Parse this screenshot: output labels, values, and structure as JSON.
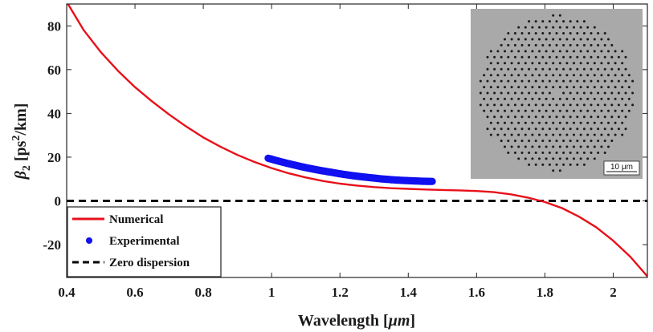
{
  "chart_data": {
    "type": "line",
    "xlabel": "Wavelength [",
    "xlabel_unit": "μm",
    "xlabel_close": "]",
    "ylabel_symbol": "β",
    "ylabel_sub": "2",
    "ylabel_unit_a": " [ps",
    "ylabel_unit_sup": "2",
    "ylabel_unit_b": "/km]",
    "xlim": [
      0.4,
      2.1
    ],
    "ylim": [
      -35,
      90
    ],
    "x_ticks": [
      0.4,
      0.6,
      0.8,
      1,
      1.2,
      1.4,
      1.6,
      1.8,
      2
    ],
    "x_tick_labels": [
      "0.4",
      "0.6",
      "0.8",
      "1",
      "1.2",
      "1.4",
      "1.6",
      "1.8",
      "2"
    ],
    "y_ticks": [
      -20,
      0,
      20,
      40,
      60,
      80
    ],
    "y_tick_labels": [
      "-20",
      "0",
      "20",
      "40",
      "60",
      "80"
    ],
    "legend_position": "bottom-left",
    "series": [
      {
        "name": "Numerical",
        "style": "line",
        "color": "#e8101a",
        "x": [
          0.4,
          0.45,
          0.5,
          0.55,
          0.6,
          0.65,
          0.7,
          0.75,
          0.8,
          0.85,
          0.9,
          0.95,
          1.0,
          1.05,
          1.1,
          1.15,
          1.2,
          1.25,
          1.3,
          1.35,
          1.4,
          1.45,
          1.5,
          1.55,
          1.6,
          1.65,
          1.7,
          1.75,
          1.8,
          1.85,
          1.9,
          1.95,
          2.0,
          2.05,
          2.1
        ],
        "y": [
          91,
          78,
          68,
          59.5,
          52,
          45.5,
          39.5,
          34,
          29,
          24.8,
          21,
          17.8,
          15,
          12.6,
          10.7,
          9.1,
          7.9,
          7.0,
          6.3,
          5.8,
          5.5,
          5.2,
          5.0,
          4.8,
          4.5,
          4.0,
          3.0,
          1.5,
          -0.5,
          -3.3,
          -7.2,
          -12.0,
          -18.2,
          -25.5,
          -34.5
        ]
      },
      {
        "name": "Experimental",
        "style": "markers",
        "color": "#1010f0",
        "x": [
          0.99,
          1.02,
          1.05,
          1.08,
          1.11,
          1.14,
          1.17,
          1.2,
          1.23,
          1.26,
          1.29,
          1.32,
          1.35,
          1.38,
          1.41,
          1.44,
          1.47
        ],
        "y": [
          19.5,
          18.2,
          17.0,
          15.9,
          14.9,
          14.0,
          13.2,
          12.4,
          11.7,
          11.1,
          10.6,
          10.1,
          9.7,
          9.4,
          9.2,
          9.0,
          8.9
        ]
      },
      {
        "name": "Zero dispersion",
        "style": "dashed",
        "color": "#000000",
        "x": [
          0.4,
          2.1
        ],
        "y": [
          0,
          0
        ]
      }
    ],
    "inset": {
      "description_label": "10 μm",
      "background": "#a9a9a9"
    }
  }
}
